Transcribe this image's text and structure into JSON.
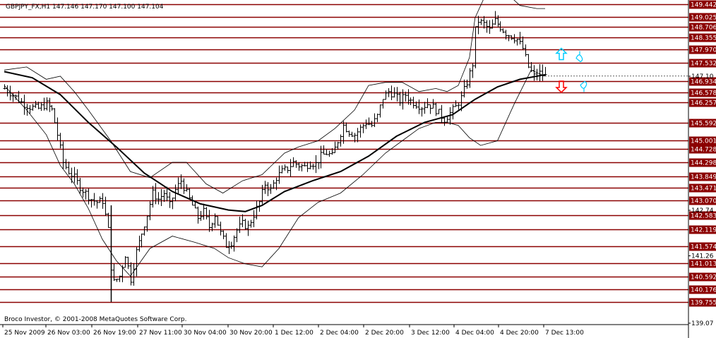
{
  "header": {
    "text": "GBPJPY_FX,H1  147.146 147.170 147.100 147.104"
  },
  "footer": {
    "text": "Broco Investor, © 2001-2008 MetaQuotes Software Corp."
  },
  "colors": {
    "level_line": "#8b0000",
    "price_label_bg": "#8b0000",
    "price_label_text": "#ffffff",
    "candle": "#000000",
    "ma": "#000000",
    "band": "#000000",
    "arrow_up": "#00ccff",
    "arrow_down": "#ff0000",
    "axis": "#000000"
  },
  "chart_data": {
    "type": "candlestick",
    "symbol": "GBPJPY_FX",
    "timeframe": "H1",
    "ylim": [
      139.07,
      149.44
    ],
    "level_lines": [
      149.442,
      149.025,
      148.706,
      148.355,
      147.97,
      147.532,
      146.934,
      146.578,
      146.257,
      145.592,
      145.001,
      144.728,
      144.298,
      143.849,
      143.471,
      143.07,
      142.583,
      142.119,
      141.574,
      141.013,
      140.592,
      140.176,
      139.755
    ],
    "plain_price_labels": [
      147.1,
      142.74,
      141.26,
      139.07
    ],
    "current_price": 147.104,
    "time_labels": [
      "25 Nov 2009",
      "26 Nov 03:00",
      "26 Nov 19:00",
      "27 Nov 11:00",
      "30 Nov 04:00",
      "30 Nov 20:00",
      "1 Dec 12:00",
      "2 Dec 04:00",
      "2 Dec 20:00",
      "3 Dec 12:00",
      "4 Dec 04:00",
      "4 Dec 20:00",
      "7 Dec 13:00"
    ],
    "close_path": [
      [
        0,
        146.7
      ],
      [
        3,
        146.5
      ],
      [
        6,
        146.25
      ],
      [
        9,
        146.1
      ],
      [
        12,
        146.05
      ],
      [
        15,
        146.2
      ],
      [
        17,
        146.0
      ],
      [
        19,
        145.2
      ],
      [
        21,
        144.3
      ],
      [
        23,
        144.0
      ],
      [
        25,
        143.8
      ],
      [
        27,
        143.5
      ],
      [
        29,
        143.3
      ],
      [
        31,
        143.1
      ],
      [
        33,
        143.0
      ],
      [
        35,
        143.05
      ],
      [
        37,
        142.1
      ],
      [
        38,
        140.9
      ],
      [
        39,
        140.4
      ],
      [
        41,
        140.6
      ],
      [
        43,
        141.3
      ],
      [
        45,
        140.5
      ],
      [
        47,
        141.4
      ],
      [
        49,
        142.0
      ],
      [
        51,
        142.6
      ],
      [
        53,
        143.3
      ],
      [
        55,
        143.1
      ],
      [
        57,
        143.3
      ],
      [
        59,
        142.9
      ],
      [
        61,
        143.4
      ],
      [
        63,
        143.7
      ],
      [
        65,
        143.3
      ],
      [
        67,
        142.9
      ],
      [
        69,
        142.5
      ],
      [
        71,
        142.7
      ],
      [
        73,
        142.2
      ],
      [
        75,
        142.6
      ],
      [
        77,
        142.0
      ],
      [
        79,
        141.6
      ],
      [
        81,
        141.7
      ],
      [
        83,
        142.1
      ],
      [
        85,
        142.3
      ],
      [
        87,
        142.2
      ],
      [
        89,
        142.6
      ],
      [
        91,
        143.0
      ],
      [
        93,
        143.6
      ],
      [
        95,
        143.4
      ],
      [
        97,
        143.8
      ],
      [
        99,
        144.0
      ],
      [
        101,
        144.1
      ],
      [
        103,
        144.3
      ],
      [
        105,
        144.2
      ],
      [
        107,
        144.15
      ],
      [
        109,
        144.3
      ],
      [
        111,
        144.25
      ],
      [
        113,
        144.5
      ],
      [
        115,
        144.6
      ],
      [
        117,
        144.5
      ],
      [
        119,
        145.0
      ],
      [
        121,
        145.5
      ],
      [
        123,
        145.3
      ],
      [
        125,
        145.2
      ],
      [
        127,
        145.4
      ],
      [
        129,
        145.6
      ],
      [
        131,
        145.5
      ],
      [
        133,
        145.8
      ],
      [
        135,
        146.4
      ],
      [
        137,
        146.6
      ],
      [
        139,
        146.5
      ],
      [
        141,
        146.3
      ],
      [
        143,
        146.5
      ],
      [
        145,
        146.3
      ],
      [
        147,
        146.2
      ],
      [
        149,
        146.1
      ],
      [
        151,
        146.2
      ],
      [
        153,
        146.1
      ],
      [
        155,
        145.9
      ],
      [
        157,
        145.7
      ],
      [
        159,
        145.9
      ],
      [
        161,
        146.1
      ],
      [
        163,
        146.4
      ],
      [
        165,
        146.9
      ],
      [
        167,
        147.5
      ],
      [
        168,
        148.6
      ],
      [
        169,
        148.9
      ],
      [
        171,
        148.8
      ],
      [
        173,
        148.6
      ],
      [
        175,
        148.9
      ],
      [
        177,
        148.7
      ],
      [
        179,
        148.5
      ],
      [
        181,
        148.4
      ],
      [
        183,
        148.3
      ],
      [
        185,
        148.0
      ],
      [
        187,
        147.4
      ],
      [
        189,
        147.1
      ],
      [
        191,
        147.2
      ],
      [
        193,
        147.104
      ]
    ],
    "ma_path": [
      [
        0,
        147.25
      ],
      [
        10,
        147.05
      ],
      [
        20,
        146.5
      ],
      [
        30,
        145.6
      ],
      [
        40,
        144.8
      ],
      [
        50,
        143.95
      ],
      [
        60,
        143.35
      ],
      [
        70,
        142.95
      ],
      [
        80,
        142.75
      ],
      [
        86,
        142.7
      ],
      [
        92,
        142.9
      ],
      [
        100,
        143.35
      ],
      [
        110,
        143.7
      ],
      [
        120,
        144.0
      ],
      [
        130,
        144.5
      ],
      [
        140,
        145.15
      ],
      [
        150,
        145.6
      ],
      [
        160,
        145.85
      ],
      [
        168,
        146.35
      ],
      [
        176,
        146.75
      ],
      [
        184,
        147.0
      ],
      [
        193,
        147.15
      ]
    ],
    "band_upper": [
      [
        0,
        147.3
      ],
      [
        8,
        147.4
      ],
      [
        15,
        147.0
      ],
      [
        20,
        147.1
      ],
      [
        25,
        146.6
      ],
      [
        30,
        146.0
      ],
      [
        38,
        145.0
      ],
      [
        45,
        144.0
      ],
      [
        52,
        143.8
      ],
      [
        60,
        144.3
      ],
      [
        65,
        144.3
      ],
      [
        72,
        143.6
      ],
      [
        78,
        143.3
      ],
      [
        85,
        143.7
      ],
      [
        92,
        143.9
      ],
      [
        100,
        144.6
      ],
      [
        105,
        144.8
      ],
      [
        112,
        145.0
      ],
      [
        118,
        145.4
      ],
      [
        125,
        146.0
      ],
      [
        130,
        146.8
      ],
      [
        136,
        146.9
      ],
      [
        142,
        146.9
      ],
      [
        148,
        146.6
      ],
      [
        154,
        146.7
      ],
      [
        158,
        146.6
      ],
      [
        162,
        146.8
      ],
      [
        166,
        147.7
      ],
      [
        168,
        149.0
      ],
      [
        172,
        149.8
      ],
      [
        178,
        149.9
      ],
      [
        184,
        149.4
      ],
      [
        190,
        149.3
      ],
      [
        193,
        149.3
      ]
    ],
    "band_lower": [
      [
        0,
        146.8
      ],
      [
        8,
        146.0
      ],
      [
        15,
        145.2
      ],
      [
        20,
        144.2
      ],
      [
        25,
        143.6
      ],
      [
        30,
        142.8
      ],
      [
        35,
        141.8
      ],
      [
        40,
        141.1
      ],
      [
        45,
        140.6
      ],
      [
        52,
        141.5
      ],
      [
        60,
        141.9
      ],
      [
        68,
        141.7
      ],
      [
        75,
        141.5
      ],
      [
        80,
        141.2
      ],
      [
        86,
        141.0
      ],
      [
        92,
        140.9
      ],
      [
        98,
        141.5
      ],
      [
        105,
        142.5
      ],
      [
        112,
        143.0
      ],
      [
        120,
        143.3
      ],
      [
        128,
        143.9
      ],
      [
        136,
        144.6
      ],
      [
        142,
        145.0
      ],
      [
        148,
        145.4
      ],
      [
        154,
        145.6
      ],
      [
        158,
        145.6
      ],
      [
        162,
        145.5
      ],
      [
        166,
        145.1
      ],
      [
        170,
        144.85
      ],
      [
        176,
        145.0
      ],
      [
        182,
        146.2
      ],
      [
        188,
        147.3
      ],
      [
        193,
        147.1
      ]
    ],
    "candles_count": 194,
    "signals": [
      {
        "type": "up-arrow",
        "color": "#00ccff",
        "price": 147.8
      },
      {
        "type": "hand-up",
        "color": "#00ccff",
        "price": 147.8
      },
      {
        "type": "down-arrow",
        "color": "#ff0000",
        "price": 146.8
      },
      {
        "type": "hand-down",
        "color": "#00ccff",
        "price": 146.7
      }
    ]
  }
}
